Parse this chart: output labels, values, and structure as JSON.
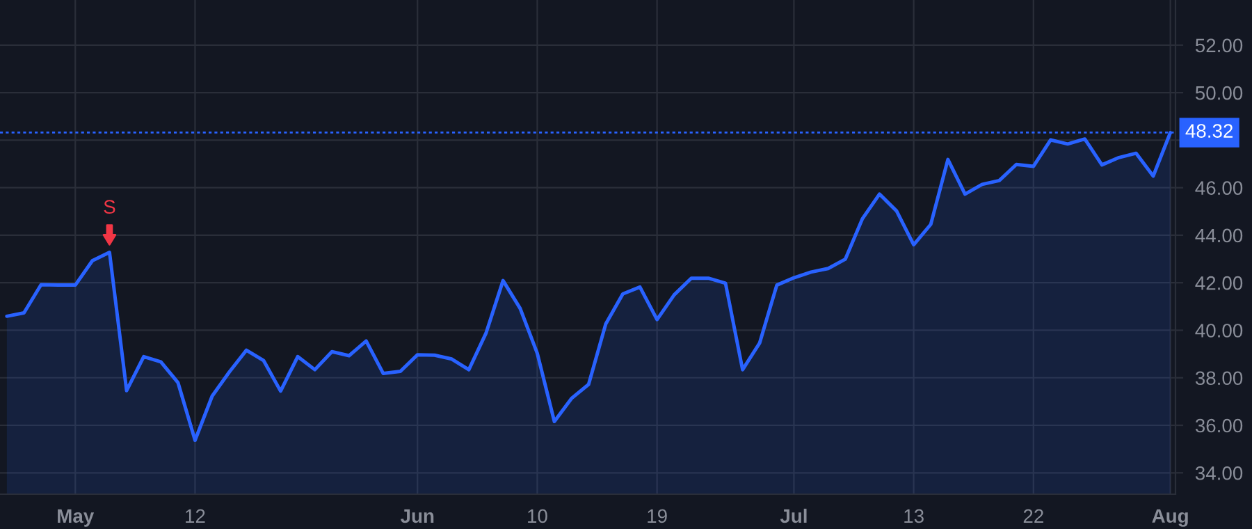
{
  "chart_data": {
    "type": "area",
    "categories": [
      null,
      null,
      null,
      null,
      "May",
      null,
      null,
      null,
      null,
      null,
      null,
      "12",
      null,
      null,
      null,
      null,
      null,
      null,
      null,
      null,
      null,
      null,
      null,
      null,
      "Jun",
      null,
      null,
      null,
      null,
      null,
      null,
      "10",
      null,
      null,
      null,
      null,
      null,
      null,
      "19",
      null,
      null,
      null,
      null,
      null,
      null,
      null,
      "Jul",
      null,
      null,
      null,
      null,
      null,
      null,
      "13",
      null,
      null,
      null,
      null,
      null,
      null,
      "22",
      null,
      null,
      null,
      null,
      null,
      null,
      null,
      "Aug"
    ],
    "series": [
      {
        "color": "#2962ff",
        "values": [
          40.59,
          40.73,
          41.92,
          41.9,
          41.9,
          42.93,
          43.28,
          37.46,
          38.89,
          38.67,
          37.8,
          35.37,
          37.23,
          38.24,
          39.16,
          38.73,
          37.44,
          38.89,
          38.34,
          39.1,
          38.93,
          39.55,
          38.18,
          38.27,
          38.97,
          38.95,
          38.79,
          38.34,
          39.87,
          42.09,
          40.92,
          39.03,
          36.16,
          37.13,
          37.72,
          40.26,
          41.53,
          41.82,
          40.45,
          41.49,
          42.19,
          42.19,
          41.98,
          38.34,
          39.47,
          41.9,
          42.21,
          42.45,
          42.6,
          42.99,
          44.69,
          45.73,
          45.02,
          43.6,
          44.46,
          47.19,
          45.73,
          46.14,
          46.3,
          46.98,
          46.9,
          48.01,
          47.84,
          48.05,
          46.96,
          47.27,
          47.45,
          46.49,
          48.32
        ]
      }
    ],
    "ylim": [
      33.1,
      53.9
    ],
    "yticks": [
      {
        "value": 34,
        "label": "34.00"
      },
      {
        "value": 36,
        "label": "36.00"
      },
      {
        "value": 38,
        "label": "38.00"
      },
      {
        "value": 40,
        "label": "40.00"
      },
      {
        "value": 42,
        "label": "42.00"
      },
      {
        "value": 44,
        "label": "44.00"
      },
      {
        "value": 46,
        "label": "46.00"
      },
      {
        "value": 48,
        "label": null
      },
      {
        "value": 50,
        "label": "50.00"
      },
      {
        "value": 52,
        "label": "52.00"
      }
    ],
    "ref_lines": [
      {
        "axis": "y",
        "value": 48.32,
        "label": "48.32",
        "color": "#2962ff",
        "line_style": "dotted"
      }
    ],
    "annotations": [
      {
        "text": "S",
        "y": 43.28
      }
    ],
    "grid": true
  }
}
